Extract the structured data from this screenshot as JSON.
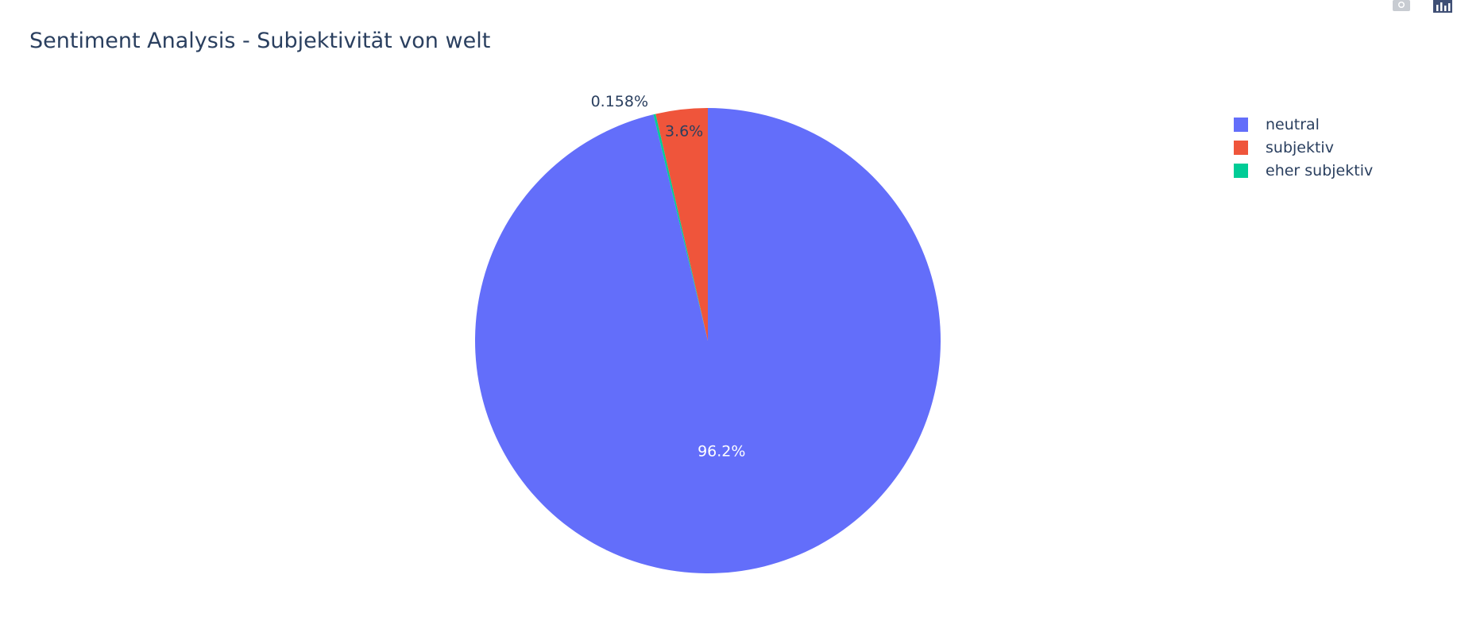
{
  "title": "Sentiment Analysis - Subjektivität von welt",
  "modebar": {
    "icons": [
      "camera-icon",
      "plotly-logo-icon"
    ]
  },
  "chart_data": {
    "type": "pie",
    "title": "Sentiment Analysis - Subjektivität von welt",
    "direction": "clockwise",
    "start_angle_deg": 90,
    "slices": [
      {
        "label": "neutral",
        "value": 96.242,
        "text": "96.2%",
        "color": "#636efa",
        "text_position": "inside",
        "text_color": "#ffffff"
      },
      {
        "label": "eher subjektiv",
        "value": 0.158,
        "text": "0.158%",
        "color": "#00cc96",
        "text_position": "outside",
        "text_color": "#2a3f5f"
      },
      {
        "label": "subjektiv",
        "value": 3.6,
        "text": "3.6%",
        "color": "#ef553b",
        "text_position": "inside",
        "text_color": "#2a3f5f"
      }
    ],
    "legend": {
      "placement": "top-right",
      "entries": [
        {
          "label": "neutral",
          "color": "#636efa"
        },
        {
          "label": "subjektiv",
          "color": "#ef553b"
        },
        {
          "label": "eher subjektiv",
          "color": "#00cc96"
        }
      ]
    }
  }
}
